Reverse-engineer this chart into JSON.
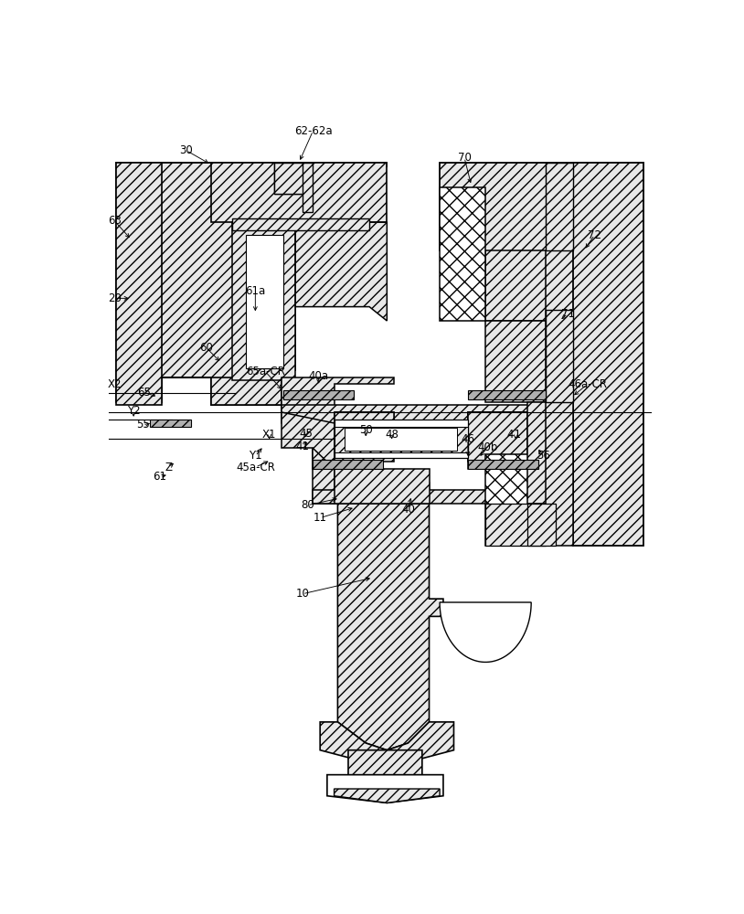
{
  "bg": "#ffffff",
  "fig_w": 8.14,
  "fig_h": 10.0,
  "dpi": 100,
  "hf": "#e8e8e8",
  "labels": [
    [
      "30",
      130,
      58
    ],
    [
      "62-62a",
      310,
      30
    ],
    [
      "63",
      28,
      158
    ],
    [
      "20",
      28,
      268
    ],
    [
      "60",
      158,
      338
    ],
    [
      "61a",
      228,
      258
    ],
    [
      "X2",
      28,
      390
    ],
    [
      "65",
      70,
      402
    ],
    [
      "65a-CR",
      242,
      372
    ],
    [
      "40a",
      318,
      378
    ],
    [
      "X1",
      248,
      462
    ],
    [
      "Y1",
      228,
      492
    ],
    [
      "Y2",
      55,
      428
    ],
    [
      "55",
      68,
      448
    ],
    [
      "Z",
      105,
      508
    ],
    [
      "61",
      92,
      522
    ],
    [
      "45a-CR",
      228,
      508
    ],
    [
      "45",
      300,
      460
    ],
    [
      "50",
      385,
      455
    ],
    [
      "48",
      422,
      462
    ],
    [
      "40b",
      558,
      480
    ],
    [
      "46",
      530,
      468
    ],
    [
      "41",
      295,
      478
    ],
    [
      "41 ",
      598,
      462
    ],
    [
      "56",
      638,
      492
    ],
    [
      "46a-CR",
      700,
      390
    ],
    [
      "70",
      525,
      68
    ],
    [
      "72",
      710,
      178
    ],
    [
      "71",
      672,
      290
    ],
    [
      "40",
      445,
      568
    ],
    [
      "80",
      302,
      562
    ],
    [
      "11",
      320,
      580
    ],
    [
      "10",
      295,
      688
    ]
  ]
}
